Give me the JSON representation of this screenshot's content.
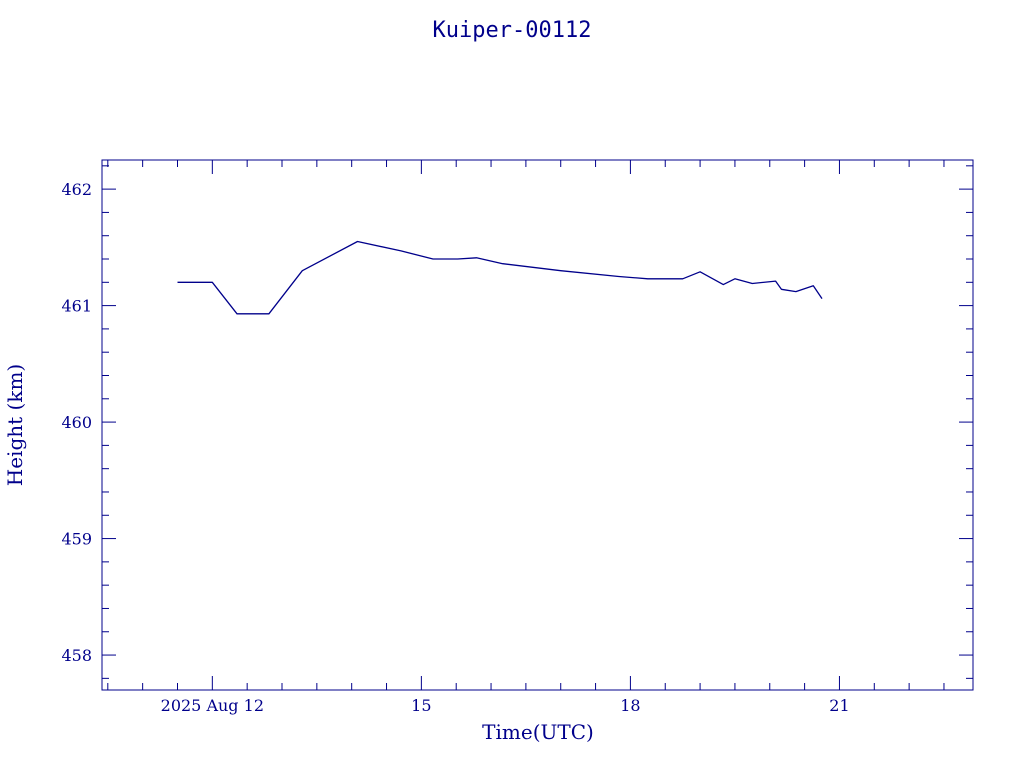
{
  "chart_data": {
    "type": "line",
    "title": "Kuiper-00112",
    "xlabel": "Time(UTC)",
    "ylabel": "Height (km)",
    "xlim": [
      "2025-08-10 10:00",
      "2025-08-22 22:00"
    ],
    "ylim": [
      457.7,
      462.25
    ],
    "x_ticks": [
      {
        "value": "2025-08-12 00:00",
        "label": "2025 Aug 12"
      },
      {
        "value": "2025-08-15 00:00",
        "label": "15"
      },
      {
        "value": "2025-08-18 00:00",
        "label": "18"
      },
      {
        "value": "2025-08-21 00:00",
        "label": "21"
      }
    ],
    "y_ticks": [
      458,
      459,
      460,
      461,
      462
    ],
    "grid": false,
    "color": "#00008b",
    "series": [
      {
        "x": [
          "2025-08-11 12:00",
          "2025-08-12 00:00",
          "2025-08-12 08:30",
          "2025-08-12 19:30",
          "2025-08-13 07:00",
          "2025-08-14 02:00",
          "2025-08-14 17:00",
          "2025-08-15 04:00",
          "2025-08-15 12:30",
          "2025-08-15 19:00",
          "2025-08-16 04:00",
          "2025-08-17 00:00",
          "2025-08-17 20:00",
          "2025-08-18 06:00",
          "2025-08-18 18:00",
          "2025-08-19 00:00",
          "2025-08-19 08:00",
          "2025-08-19 12:00",
          "2025-08-19 18:00",
          "2025-08-20 02:00",
          "2025-08-20 04:00",
          "2025-08-20 09:00",
          "2025-08-20 15:00",
          "2025-08-20 18:00"
        ],
        "y": [
          461.2,
          461.2,
          460.93,
          460.93,
          461.3,
          461.55,
          461.47,
          461.4,
          461.4,
          461.41,
          461.36,
          461.3,
          461.25,
          461.23,
          461.23,
          461.29,
          461.18,
          461.23,
          461.19,
          461.21,
          461.14,
          461.12,
          461.17,
          461.06
        ]
      }
    ]
  }
}
